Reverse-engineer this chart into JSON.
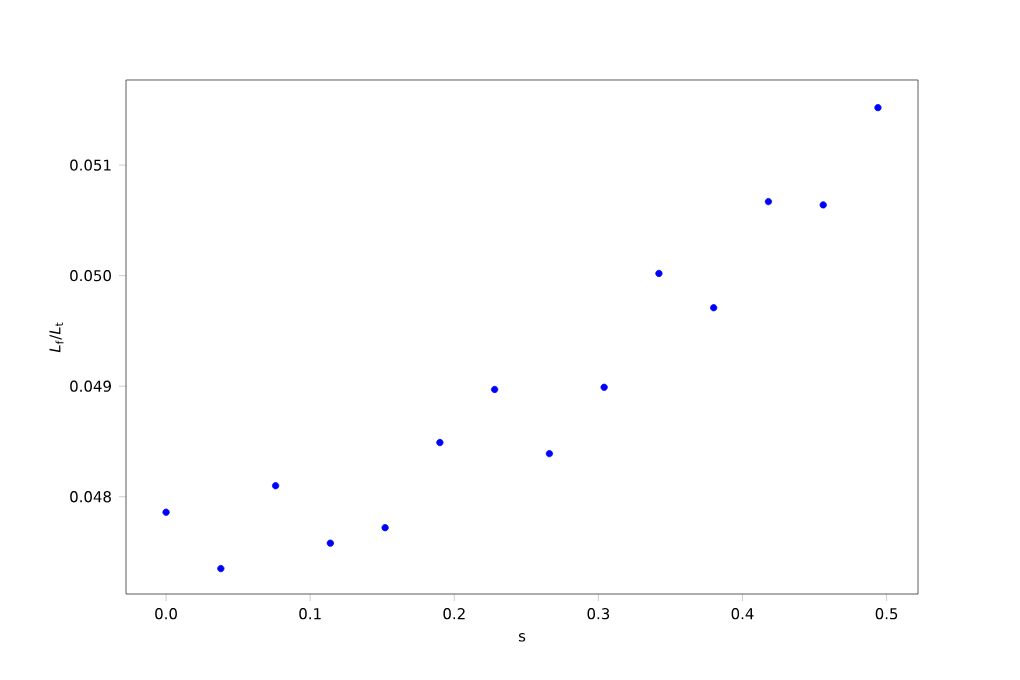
{
  "chart_data": {
    "type": "scatter",
    "xlabel": "s",
    "ylabel": "*L*$_{f}$/*L*$_{t}$",
    "x": [
      0,
      0.038,
      0.076,
      0.114,
      0.152,
      0.19,
      0.228,
      0.266,
      0.304,
      0.342,
      0.38,
      0.418,
      0.456,
      0.494
    ],
    "series": [
      {
        "color": "#0000ff",
        "values": [
          0.04786,
          0.04735,
          0.0481,
          0.04758,
          0.04772,
          0.04849,
          0.04897,
          0.04839,
          0.04899,
          0.05002,
          0.04971,
          0.05067,
          0.05064,
          0.05152
        ]
      }
    ],
    "xlim": [
      -0.0278,
      0.5218
    ],
    "ylim": [
      0.04712,
      0.05177
    ],
    "xticks": [
      {
        "value": 0,
        "label": "0.0"
      },
      0.1,
      0.2,
      0.3,
      0.4,
      0.5
    ],
    "yticks": [
      0.048,
      0.049,
      {
        "value": 0.05,
        "label": "0.050"
      },
      0.051
    ],
    "marker": "circle",
    "grid": false
  }
}
